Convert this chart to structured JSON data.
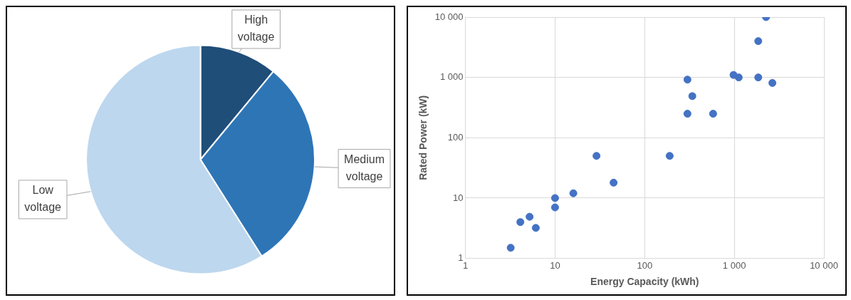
{
  "chart_data": [
    {
      "type": "pie",
      "categories": [
        "High voltage",
        "Medium voltage",
        "Low voltage"
      ],
      "values": [
        11,
        30,
        59
      ],
      "colors": [
        "#1f4e79",
        "#2e75b6",
        "#bdd7ee"
      ],
      "legend": false
    },
    {
      "type": "scatter",
      "xlabel": "Energy Capacity (kWh)",
      "ylabel": "Rated Power (kW)",
      "log": "xy",
      "grid": true,
      "marker": "circle",
      "legend": false,
      "xlim": [
        1,
        10000
      ],
      "xticks": [
        1,
        10,
        100,
        {
          "value": 1000,
          "label": "1 000"
        },
        {
          "value": 10000,
          "label": "10 000"
        }
      ],
      "ylim": [
        1,
        10000
      ],
      "yticks": [
        1,
        10,
        100,
        {
          "value": 1000,
          "label": "1 000"
        },
        {
          "value": 10000,
          "label": "10 000"
        }
      ],
      "series": [
        {
          "color": "#4472c4",
          "x": [
            3.2,
            4.1,
            5.2,
            6.1,
            10,
            10,
            16,
            29,
            45,
            190,
            300,
            300,
            340,
            580,
            980,
            1120,
            1850,
            1850,
            2260,
            2660
          ],
          "values": [
            1.5,
            4,
            4.9,
            3.2,
            10,
            7,
            12,
            50,
            18,
            50,
            920,
            250,
            490,
            250,
            1100,
            1000,
            4000,
            1000,
            10000,
            810
          ]
        }
      ]
    }
  ]
}
